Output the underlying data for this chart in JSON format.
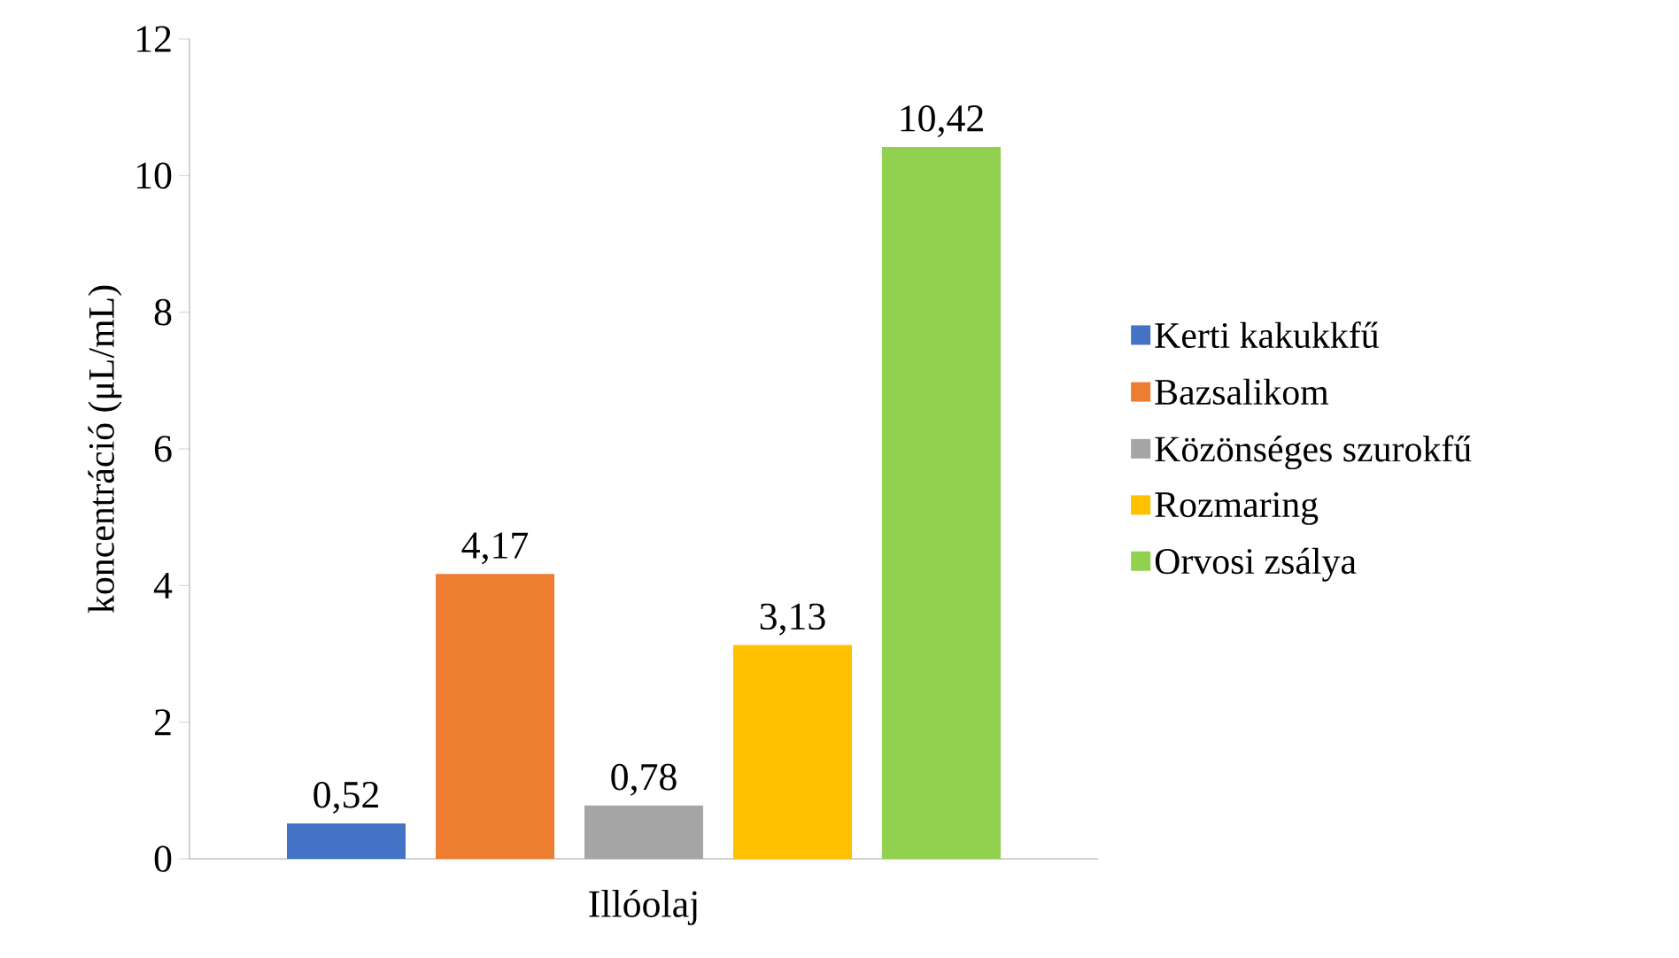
{
  "chart_data": {
    "type": "bar",
    "ylabel": "koncentráció  (μL/mL)",
    "categories": [
      "Illóolaj"
    ],
    "series": [
      {
        "name": "Kerti kakukkfű",
        "color": "#4472c4",
        "values": [
          0.52
        ],
        "value_labels": [
          "0,52"
        ]
      },
      {
        "name": "Bazsalikom",
        "color": "#ed7d31",
        "values": [
          4.17
        ],
        "value_labels": [
          "4,17"
        ]
      },
      {
        "name": "Közönséges szurokfű",
        "color": "#a5a5a5",
        "values": [
          0.78
        ],
        "value_labels": [
          "0,78"
        ]
      },
      {
        "name": "Rozmaring",
        "color": "#ffc000",
        "values": [
          3.13
        ],
        "value_labels": [
          "3,13"
        ]
      },
      {
        "name": "Orvosi zsálya",
        "color": "#92d050",
        "values": [
          10.42
        ],
        "value_labels": [
          "10,42"
        ]
      }
    ],
    "ylim": [
      0,
      12
    ],
    "yticks": [
      0,
      2,
      4,
      6,
      8,
      10,
      12
    ],
    "grid": false,
    "legend": "right"
  }
}
